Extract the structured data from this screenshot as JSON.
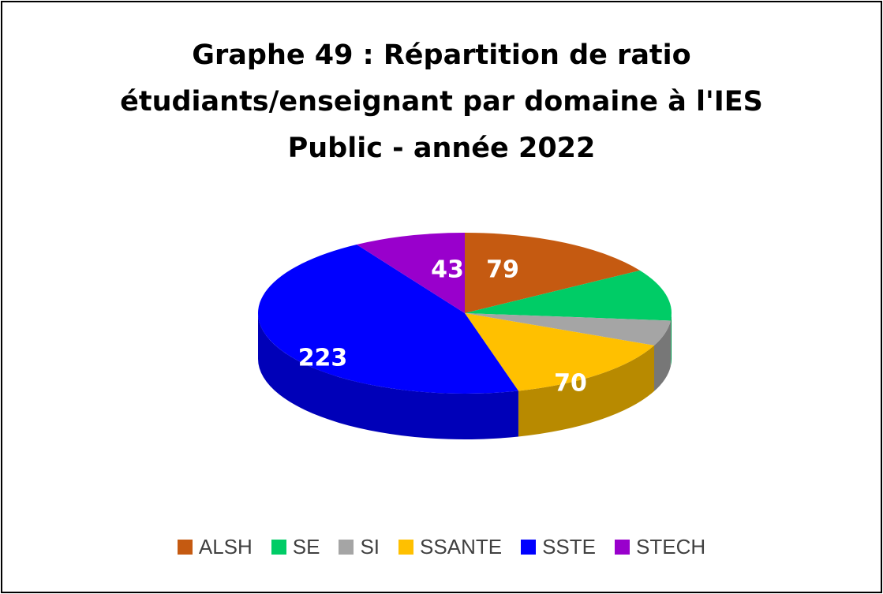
{
  "chart_data": {
    "type": "pie",
    "style": "3d-pie",
    "title_lines": [
      "Graphe 49 : Répartition de ratio",
      "étudiants/enseignant par domaine à l'IES",
      "Public - année 2022"
    ],
    "series": [
      {
        "name": "ALSH",
        "value": 79,
        "color": "#C55A11",
        "label_shown": true
      },
      {
        "name": "SE",
        "value": 51,
        "color": "#00CC66",
        "label_shown": false
      },
      {
        "name": "SI",
        "value": 25,
        "color": "#A5A5A5",
        "label_shown": false
      },
      {
        "name": "SSANTE",
        "value": 70,
        "color": "#FFC000",
        "label_shown": true
      },
      {
        "name": "SSTE",
        "value": 223,
        "color": "#0000FF",
        "label_shown": true
      },
      {
        "name": "STECH",
        "value": 43,
        "color": "#9900CC",
        "label_shown": true
      }
    ],
    "legend_position": "bottom"
  }
}
